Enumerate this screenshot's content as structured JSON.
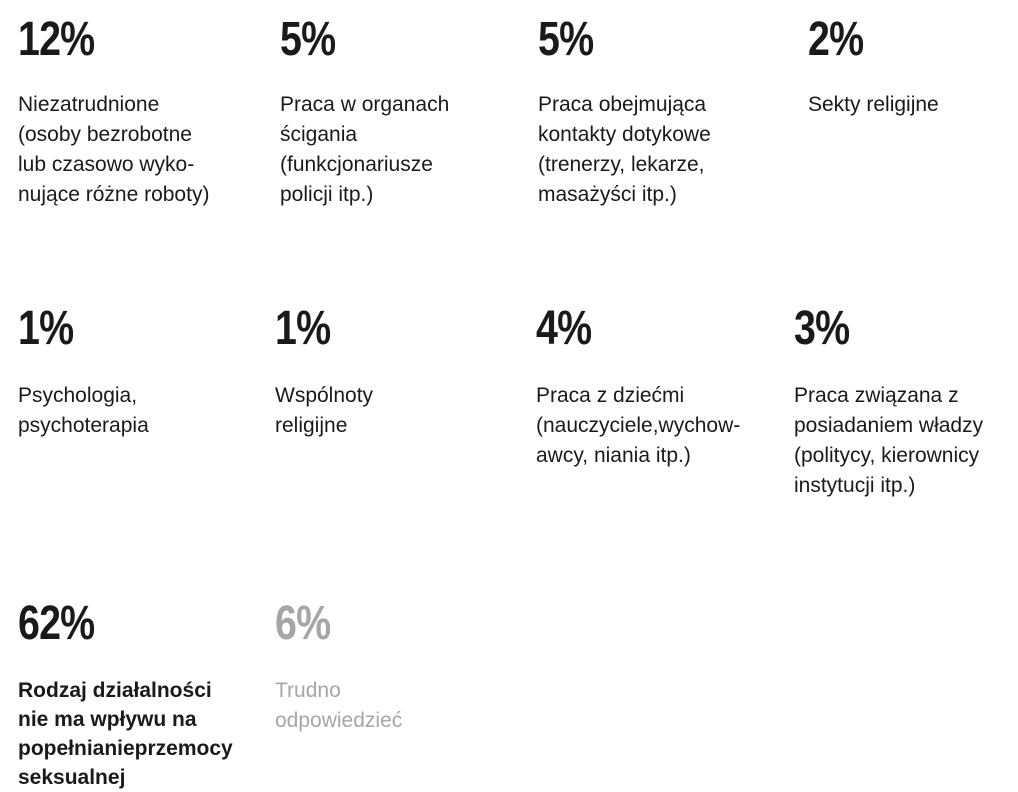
{
  "stats": [
    {
      "percent": "12%",
      "label": "Niezatrudnione\n(osoby bezrobotne\nlub czasowo wyko-\nnujące różne roboty)"
    },
    {
      "percent": "5%",
      "label": "Praca w organach\nścigania\n(funkcjonariusze\npolicji itp.)"
    },
    {
      "percent": "5%",
      "label": "Praca obejmująca\nkontakty dotykowe\n(trenerzy, lekarze,\nmasażyści itp.)"
    },
    {
      "percent": "2%",
      "label": "Sekty religijne"
    },
    {
      "percent": "1%",
      "label": "Psychologia,\npsychoterapia"
    },
    {
      "percent": "1%",
      "label": "Wspólnoty\nreligijne"
    },
    {
      "percent": "4%",
      "label": "Praca z dziećmi\n(nauczyciele,wychow-\nawcy, niania itp.)"
    },
    {
      "percent": "3%",
      "label": "Praca związana z\nposiadaniem władzy\n(politycy, kierownicy\ninstytucji itp.)"
    },
    {
      "percent": "62%",
      "label": "Rodzaj działalności\nnie ma wpływu na\npopełnianieprzemocy\nseksualnej"
    },
    {
      "percent": "6%",
      "label": "Trudno\nodpowiedzieć"
    }
  ],
  "colors": {
    "text": "#1a1a1a",
    "muted": "#a6a6a6",
    "background": "#ffffff"
  }
}
